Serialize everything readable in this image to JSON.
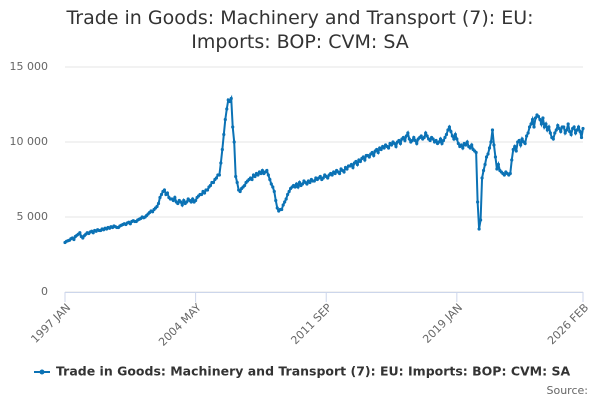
{
  "chart_data": {
    "type": "line",
    "title": "Trade in Goods: Machinery and Transport (7): EU: Imports: BOP: CVM: SA",
    "source_label": "Source:",
    "ylim": [
      0,
      15000
    ],
    "yticks": [
      0,
      {
        "value": 5000,
        "label": "5 000"
      },
      {
        "value": 10000,
        "label": "10 000"
      },
      {
        "value": 15000,
        "label": "15 000"
      }
    ],
    "grid": true,
    "legend": "bottom",
    "categories": [
      "1997 JAN",
      null,
      null,
      null,
      null,
      null,
      null,
      null,
      null,
      null,
      null,
      null,
      null,
      null,
      null,
      null,
      null,
      null,
      null,
      null,
      null,
      null,
      null,
      null,
      null,
      null,
      null,
      null,
      null,
      null,
      null,
      null,
      null,
      null,
      null,
      null,
      null,
      null,
      null,
      null,
      null,
      null,
      null,
      null,
      null,
      null,
      null,
      null,
      null,
      null,
      null,
      null,
      null,
      null,
      null,
      null,
      null,
      null,
      null,
      null,
      null,
      null,
      null,
      null,
      null,
      null,
      null,
      null,
      null,
      null,
      null,
      null,
      null,
      null,
      null,
      null,
      null,
      null,
      null,
      null,
      null,
      null,
      null,
      null,
      null,
      null,
      null,
      null,
      "2004 MAY",
      null,
      null,
      null,
      null,
      null,
      null,
      null,
      null,
      null,
      null,
      null,
      null,
      null,
      null,
      null,
      null,
      null,
      null,
      null,
      null,
      null,
      null,
      null,
      null,
      null,
      null,
      null,
      null,
      null,
      null,
      null,
      null,
      null,
      null,
      null,
      null,
      null,
      null,
      null,
      null,
      null,
      null,
      null,
      null,
      null,
      null,
      null,
      null,
      null,
      null,
      null,
      null,
      null,
      null,
      null,
      null,
      null,
      null,
      null,
      null,
      null,
      null,
      null,
      null,
      null,
      null,
      null,
      null,
      null,
      null,
      null,
      null,
      null,
      null,
      null,
      null,
      null,
      null,
      null,
      null,
      null,
      null,
      null,
      null,
      null,
      null,
      null,
      "2011 SEP",
      null,
      null,
      null,
      null,
      null,
      null,
      null,
      null,
      null,
      null,
      null,
      null,
      null,
      null,
      null,
      null,
      null,
      null,
      null,
      null,
      null,
      null,
      null,
      null,
      null,
      null,
      null,
      null,
      null,
      null,
      null,
      null,
      null,
      null,
      null,
      null,
      null,
      null,
      null,
      null,
      null,
      null,
      null,
      null,
      null,
      null,
      null,
      null,
      null,
      null,
      null,
      null,
      null,
      null,
      null,
      null,
      null,
      null,
      null,
      null,
      null,
      null,
      null,
      null,
      null,
      null,
      null,
      null,
      null,
      null,
      null,
      null,
      null,
      null,
      null,
      null,
      null,
      null,
      null,
      null,
      null,
      null,
      null,
      null,
      null,
      null,
      null,
      "2019 JAN",
      null,
      null,
      null,
      null,
      null,
      null,
      null,
      null,
      null,
      null,
      null,
      null,
      null,
      null,
      null,
      null,
      null,
      null,
      null,
      null,
      null,
      null,
      null,
      null,
      null,
      null,
      null,
      null,
      null,
      null,
      null,
      null,
      null,
      null,
      null,
      null,
      null,
      null,
      null,
      null,
      null,
      null,
      null,
      null,
      null,
      null,
      null,
      null,
      null,
      null,
      null,
      null,
      null,
      null,
      null,
      null,
      null,
      null,
      null,
      null,
      null,
      null,
      null,
      null,
      null,
      null,
      null,
      null,
      null,
      null,
      null,
      null,
      null,
      null,
      null,
      null,
      null,
      null,
      null,
      null,
      null,
      null,
      null,
      null,
      "2026 FEB"
    ],
    "series": [
      {
        "name": "Trade in Goods: Machinery and Transport (7): EU: Imports: BOP: CVM: SA",
        "color": "#0b72b5",
        "values": [
          3300,
          3380,
          3420,
          3450,
          3550,
          3600,
          3500,
          3700,
          3780,
          3850,
          3950,
          3700,
          3600,
          3750,
          3850,
          3950,
          3900,
          4000,
          4050,
          3950,
          4100,
          4050,
          4150,
          4100,
          4100,
          4200,
          4150,
          4250,
          4200,
          4300,
          4250,
          4350,
          4300,
          4400,
          4350,
          4300,
          4300,
          4400,
          4450,
          4500,
          4550,
          4500,
          4600,
          4650,
          4550,
          4700,
          4750,
          4700,
          4700,
          4800,
          4850,
          4900,
          5000,
          4950,
          5000,
          5100,
          5200,
          5300,
          5400,
          5350,
          5500,
          5600,
          5700,
          5900,
          6300,
          6500,
          6700,
          6800,
          6500,
          6600,
          6300,
          6200,
          6200,
          6100,
          6300,
          6000,
          5900,
          6100,
          6000,
          5800,
          6100,
          5900,
          6000,
          6200,
          6100,
          6000,
          6200,
          6000,
          6100,
          6300,
          6400,
          6500,
          6500,
          6700,
          6600,
          6800,
          6800,
          7000,
          7100,
          7300,
          7300,
          7500,
          7600,
          7800,
          7800,
          8600,
          9500,
          10500,
          11500,
          12200,
          12800,
          12700,
          12900,
          11000,
          10000,
          7700,
          7300,
          6800,
          6700,
          6900,
          7000,
          7100,
          7300,
          7400,
          7500,
          7600,
          7500,
          7800,
          7700,
          7900,
          7800,
          8000,
          7900,
          8100,
          7900,
          8000,
          8100,
          7800,
          7500,
          7200,
          7000,
          6700,
          6100,
          5600,
          5400,
          5500,
          5500,
          5800,
          6000,
          6200,
          6500,
          6700,
          6900,
          7000,
          7100,
          7000,
          7200,
          7000,
          7300,
          7100,
          7200,
          7400,
          7300,
          7200,
          7400,
          7300,
          7500,
          7400,
          7400,
          7600,
          7500,
          7600,
          7700,
          7500,
          7600,
          7800,
          7700,
          7600,
          7800,
          7900,
          7800,
          8000,
          7900,
          8100,
          8000,
          7900,
          8200,
          8100,
          8000,
          8300,
          8200,
          8400,
          8400,
          8500,
          8300,
          8600,
          8700,
          8500,
          8800,
          8700,
          8900,
          9000,
          8800,
          9100,
          9100,
          9000,
          9200,
          9300,
          9100,
          9400,
          9500,
          9300,
          9600,
          9500,
          9700,
          9600,
          9800,
          9700,
          9600,
          9900,
          9800,
          10000,
          9900,
          9700,
          10000,
          10100,
          9900,
          10200,
          10300,
          10100,
          10400,
          10600,
          10200,
          10000,
          10100,
          10300,
          10100,
          9900,
          10200,
          10300,
          10400,
          10200,
          10300,
          10600,
          10400,
          10200,
          10100,
          10300,
          10200,
          10000,
          10100,
          9900,
          10000,
          10200,
          9900,
          10100,
          10300,
          10500,
          10800,
          11000,
          10700,
          10400,
          10200,
          10500,
          10200,
          9900,
          9700,
          9800,
          9600,
          9900,
          9800,
          10000,
          9700,
          9600,
          9800,
          9500,
          9400,
          9300,
          6000,
          4200,
          4800,
          7600,
          8100,
          8500,
          9000,
          9200,
          9600,
          10000,
          10800,
          9800,
          9000,
          8200,
          8500,
          8100,
          8000,
          7900,
          7800,
          8000,
          7900,
          7800,
          7900,
          8800,
          9500,
          9700,
          9400,
          10000,
          10100,
          9800,
          10200,
          10000,
          9900,
          10400,
          10600,
          11000,
          11200,
          11500,
          11000,
          11600,
          11800,
          11700,
          11500,
          11200,
          11600,
          11000,
          11200,
          10800,
          11000,
          10600,
          10300,
          10200,
          10600,
          10800,
          11100,
          10900,
          10700,
          11000,
          11000,
          10600,
          10800,
          11200,
          10700,
          10500,
          10900,
          11000,
          10600,
          10800,
          11000,
          10700,
          10300,
          10900
        ]
      }
    ]
  }
}
